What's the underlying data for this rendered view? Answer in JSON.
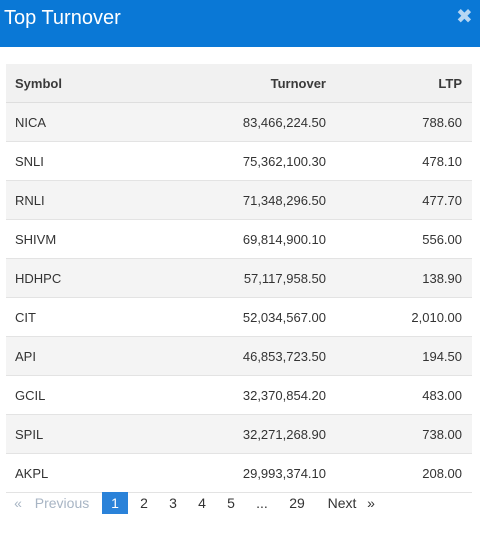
{
  "modal": {
    "title": "Top Turnover",
    "close_icon": "times-icon",
    "close_glyph": "✖"
  },
  "table": {
    "headers": {
      "symbol": "Symbol",
      "turnover": "Turnover",
      "ltp": "LTP"
    },
    "rows": [
      {
        "symbol": "NICA",
        "turnover": "83,466,224.50",
        "ltp": "788.60"
      },
      {
        "symbol": "SNLI",
        "turnover": "75,362,100.30",
        "ltp": "478.10"
      },
      {
        "symbol": "RNLI",
        "turnover": "71,348,296.50",
        "ltp": "477.70"
      },
      {
        "symbol": "SHIVM",
        "turnover": "69,814,900.10",
        "ltp": "556.00"
      },
      {
        "symbol": "HDHPC",
        "turnover": "57,117,958.50",
        "ltp": "138.90"
      },
      {
        "symbol": "CIT",
        "turnover": "52,034,567.00",
        "ltp": "2,010.00"
      },
      {
        "symbol": "API",
        "turnover": "46,853,723.50",
        "ltp": "194.50"
      },
      {
        "symbol": "GCIL",
        "turnover": "32,370,854.20",
        "ltp": "483.00"
      },
      {
        "symbol": "SPIL",
        "turnover": "32,271,268.90",
        "ltp": "738.00"
      },
      {
        "symbol": "AKPL",
        "turnover": "29,993,374.10",
        "ltp": "208.00"
      }
    ]
  },
  "pagination": {
    "first_glyph": "«",
    "previous": "Previous",
    "pages": [
      "1",
      "2",
      "3",
      "4",
      "5"
    ],
    "ellipsis": "...",
    "last_page": "29",
    "next": "Next",
    "last_glyph": "»",
    "current_page": "1"
  },
  "colors": {
    "header_bg": "#0a78d6",
    "active_page_bg": "#2a82d9",
    "row_alt_bg": "#f4f4f4",
    "disabled_text": "#a8b5c4"
  }
}
